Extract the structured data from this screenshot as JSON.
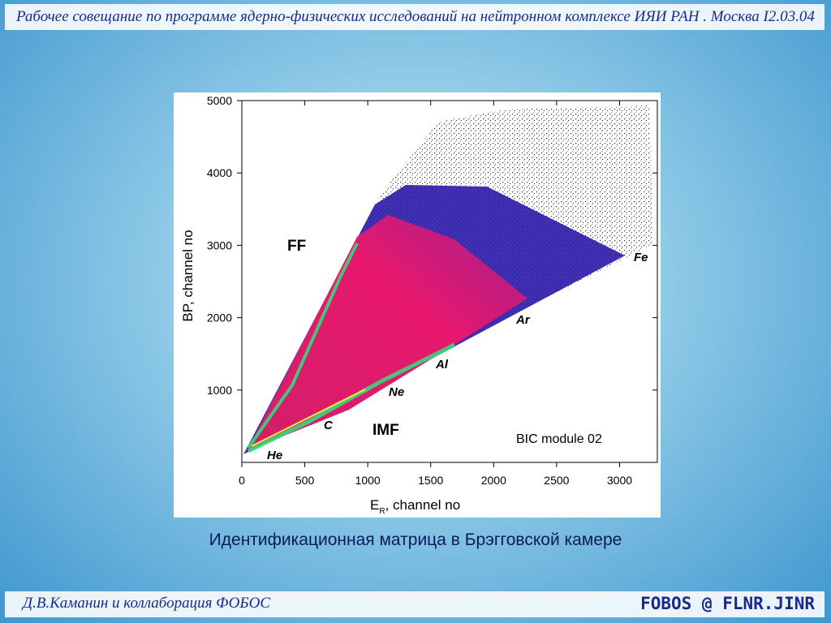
{
  "header": {
    "title": "Рабочее совещание по программе ядерно-физических исследований  на нейтронном комплексе ИЯИ РАН . Москва I2.03.04"
  },
  "chart_data": {
    "type": "heatmap",
    "x_label": {
      "main": "E",
      "sub": "R",
      "rest": ", channel no"
    },
    "y_label": "BP, channel no",
    "xlim": [
      0,
      3300
    ],
    "ylim": [
      0,
      5000
    ],
    "xticks": [
      0,
      500,
      1000,
      1500,
      2000,
      2500,
      3000
    ],
    "yticks": [
      1000,
      2000,
      3000,
      4000,
      5000
    ],
    "annotations": [
      "FF",
      "IMF",
      "He",
      "C",
      "Ne",
      "Al",
      "Ar",
      "Fe",
      "BIC module 02"
    ]
  },
  "caption": "Идентификационная матрица в Брэгговской камере",
  "footer": {
    "left": "Д.В.Каманин и коллаборация ФОБОС",
    "right": "FOBOS @ FLNR.JINR"
  }
}
